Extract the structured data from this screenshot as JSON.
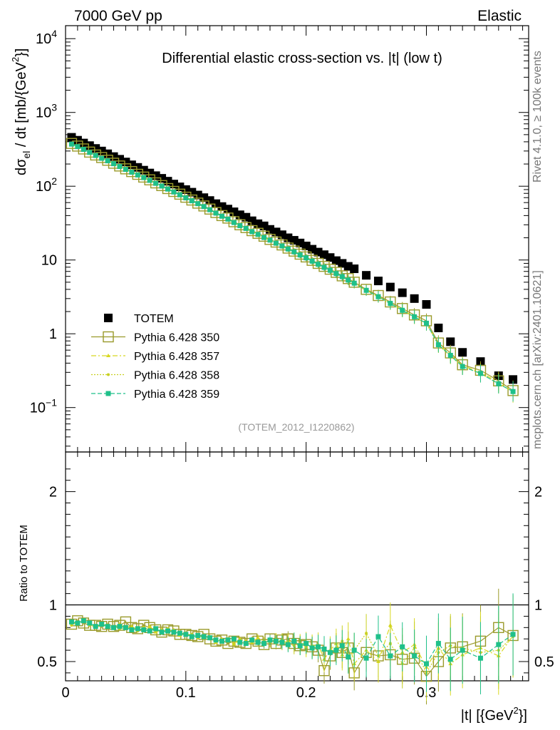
{
  "header": {
    "left": "7000 GeV pp",
    "right": "Elastic"
  },
  "side_labels": {
    "version": "Rivet 4.1.0, ≥ 100k events",
    "source": "mcplots.cern.ch [arXiv:2401.10621]"
  },
  "colors": {
    "totem": "#000000",
    "p350": "#9a9a2a",
    "p357": "#d8d820",
    "p358": "#c8d020",
    "p359": "#1fc08a"
  },
  "chart_data": [
    {
      "type": "scatter",
      "title": "Differential elastic cross-section vs. |t| (low t)",
      "watermark": "(TOTEM_2012_I1220862)",
      "ylabel_main": "dσ",
      "ylabel_sub": "el",
      "ylabel_tail": " / dt [mb/{GeV",
      "ylabel_sup": "2",
      "ylabel_end": "}]",
      "yscale": "log",
      "ylim": [
        0.025,
        15000
      ],
      "xlim": [
        0,
        0.385
      ],
      "ytick_labels": [
        {
          "value": 10000,
          "base": "10",
          "exp": "4"
        },
        {
          "value": 1000,
          "base": "10",
          "exp": "3"
        },
        {
          "value": 100,
          "base": "10",
          "exp": "2"
        },
        {
          "value": 10,
          "base": "10",
          "exp": ""
        },
        {
          "value": 1,
          "base": "1",
          "exp": ""
        },
        {
          "value": 0.1,
          "base": "10",
          "exp": "−1"
        }
      ],
      "legend": [
        "TOTEM",
        "Pythia 6.428 350",
        "Pythia 6.428 357",
        "Pythia 6.428 358",
        "Pythia 6.428 359"
      ],
      "legend_position": "lower-left",
      "x": [
        0.005,
        0.01,
        0.015,
        0.02,
        0.025,
        0.03,
        0.035,
        0.04,
        0.045,
        0.05,
        0.055,
        0.06,
        0.065,
        0.07,
        0.075,
        0.08,
        0.085,
        0.09,
        0.095,
        0.1,
        0.105,
        0.11,
        0.115,
        0.12,
        0.125,
        0.13,
        0.135,
        0.14,
        0.145,
        0.15,
        0.155,
        0.16,
        0.165,
        0.17,
        0.175,
        0.18,
        0.185,
        0.19,
        0.195,
        0.2,
        0.205,
        0.21,
        0.215,
        0.22,
        0.225,
        0.23,
        0.235,
        0.24,
        0.25,
        0.26,
        0.27,
        0.28,
        0.29,
        0.3,
        0.31,
        0.32,
        0.33,
        0.345,
        0.36,
        0.372
      ],
      "series": [
        {
          "name": "TOTEM",
          "values": [
            460,
            420,
            385,
            355,
            325,
            300,
            275,
            252,
            232,
            213,
            195,
            180,
            165,
            151,
            139,
            128,
            117,
            107,
            98,
            90,
            83,
            76,
            70,
            64,
            58,
            53,
            49,
            45,
            41,
            38,
            34,
            31,
            29,
            26,
            24,
            22,
            20,
            18.5,
            17,
            15.5,
            14,
            12.8,
            11.8,
            10.8,
            9.8,
            9.0,
            8.2,
            7.6,
            6.2,
            5.2,
            4.3,
            3.6,
            3.0,
            2.5,
            1.2,
            0.78,
            0.56,
            0.42,
            0.27,
            0.24
          ]
        },
        {
          "name": "Pythia 6.428 350",
          "values": [
            380,
            350,
            320,
            290,
            265,
            245,
            225,
            205,
            188,
            172,
            158,
            145,
            133,
            122,
            111,
            102,
            93,
            85,
            78,
            71,
            65,
            59,
            54,
            49,
            44,
            40,
            37,
            33,
            30,
            27.5,
            25,
            23,
            21,
            19,
            17.5,
            16,
            14.5,
            13.2,
            12,
            11,
            9.9,
            9.0,
            8.2,
            7.5,
            6.8,
            6.1,
            5.6,
            5.0,
            4.0,
            3.3,
            2.7,
            2.2,
            1.8,
            1.5,
            0.75,
            0.55,
            0.38,
            0.32,
            0.23,
            0.17
          ]
        },
        {
          "name": "Pythia 6.428 357",
          "values": [
            375,
            345,
            318,
            288,
            262,
            240,
            222,
            203,
            186,
            170,
            156,
            143,
            131,
            120,
            110,
            101,
            92,
            84,
            77,
            70,
            64,
            58,
            53,
            48,
            43.5,
            39.5,
            36,
            32.5,
            29.5,
            27,
            24.5,
            22.5,
            20.5,
            18.8,
            17,
            15.6,
            14.2,
            13,
            11.8,
            10.8,
            9.7,
            8.8,
            8.0,
            7.3,
            6.6,
            6.0,
            5.4,
            4.9,
            3.9,
            3.2,
            2.6,
            2.1,
            1.7,
            1.4,
            0.72,
            0.52,
            0.37,
            0.3,
            0.22,
            0.16
          ]
        },
        {
          "name": "Pythia 6.428 358",
          "values": [
            370,
            342,
            315,
            286,
            260,
            238,
            220,
            201,
            184,
            168,
            154,
            142,
            130,
            119,
            109,
            100,
            91,
            83,
            76,
            69,
            63,
            57.5,
            52.5,
            47.5,
            43,
            39,
            35.5,
            32,
            29,
            26.5,
            24,
            22,
            20,
            18.5,
            16.8,
            15.4,
            14,
            12.8,
            11.7,
            10.7,
            9.6,
            8.7,
            7.9,
            7.2,
            6.5,
            5.9,
            5.3,
            4.8,
            3.85,
            3.15,
            2.55,
            2.05,
            1.68,
            1.38,
            0.7,
            0.5,
            0.36,
            0.29,
            0.21,
            0.165
          ]
        },
        {
          "name": "Pythia 6.428 359",
          "values": [
            372,
            344,
            316,
            287,
            261,
            239,
            221,
            202,
            185,
            169,
            155,
            142,
            131,
            120,
            109.5,
            100.5,
            91.5,
            83.5,
            76.5,
            69.5,
            63.5,
            58,
            53,
            48,
            43.2,
            39.2,
            35.8,
            32.2,
            29.2,
            26.8,
            24.2,
            22.2,
            20.2,
            18.6,
            16.9,
            15.5,
            14.1,
            12.9,
            11.7,
            10.7,
            9.65,
            8.75,
            7.95,
            7.25,
            6.55,
            5.95,
            5.35,
            4.85,
            3.88,
            3.18,
            2.58,
            2.08,
            1.7,
            1.39,
            0.71,
            0.51,
            0.36,
            0.29,
            0.21,
            0.165
          ]
        }
      ]
    },
    {
      "type": "scatter",
      "ylabel": "Ratio to TOTEM",
      "xlabel_main": "|t|  [{GeV",
      "xlabel_sup": "2",
      "xlabel_end": "}]",
      "ylim": [
        0.33,
        2.35
      ],
      "xlim": [
        0,
        0.385
      ],
      "reference_line": 1,
      "ytick_labels": [
        {
          "value": 2,
          "text": "2"
        },
        {
          "value": 1,
          "text": "1"
        },
        {
          "value": 0.5,
          "text": "0.5"
        }
      ],
      "xtick_labels": [
        {
          "value": 0,
          "text": "0"
        },
        {
          "value": 0.1,
          "text": "0.1"
        },
        {
          "value": 0.2,
          "text": "0.2"
        },
        {
          "value": 0.3,
          "text": "0.3"
        }
      ],
      "x": [
        0.005,
        0.01,
        0.015,
        0.02,
        0.025,
        0.03,
        0.035,
        0.04,
        0.045,
        0.05,
        0.055,
        0.06,
        0.065,
        0.07,
        0.075,
        0.08,
        0.085,
        0.09,
        0.095,
        0.1,
        0.105,
        0.11,
        0.115,
        0.12,
        0.125,
        0.13,
        0.135,
        0.14,
        0.145,
        0.15,
        0.155,
        0.16,
        0.165,
        0.17,
        0.175,
        0.18,
        0.185,
        0.19,
        0.195,
        0.2,
        0.205,
        0.21,
        0.215,
        0.22,
        0.225,
        0.23,
        0.235,
        0.24,
        0.25,
        0.26,
        0.27,
        0.28,
        0.29,
        0.3,
        0.31,
        0.32,
        0.33,
        0.345,
        0.36,
        0.372
      ],
      "series": [
        {
          "name": "Pythia 6.428 350",
          "values": [
            0.83,
            0.86,
            0.84,
            0.82,
            0.82,
            0.81,
            0.83,
            0.81,
            0.82,
            0.85,
            0.8,
            0.79,
            0.82,
            0.8,
            0.78,
            0.76,
            0.78,
            0.77,
            0.74,
            0.74,
            0.73,
            0.72,
            0.74,
            0.7,
            0.68,
            0.69,
            0.66,
            0.68,
            0.67,
            0.66,
            0.7,
            0.68,
            0.65,
            0.7,
            0.66,
            0.69,
            0.7,
            0.66,
            0.64,
            0.65,
            0.63,
            0.6,
            0.42,
            0.55,
            0.62,
            0.58,
            0.62,
            0.4,
            0.58,
            0.55,
            0.56,
            0.52,
            0.53,
            0.37,
            0.5,
            0.62,
            0.63,
            0.68,
            0.8,
            0.73
          ]
        },
        {
          "name": "Pythia 6.428 357",
          "values": [
            0.84,
            0.85,
            0.86,
            0.83,
            0.81,
            0.83,
            0.82,
            0.8,
            0.83,
            0.8,
            0.81,
            0.78,
            0.79,
            0.81,
            0.76,
            0.78,
            0.76,
            0.78,
            0.73,
            0.75,
            0.72,
            0.73,
            0.71,
            0.72,
            0.67,
            0.7,
            0.68,
            0.66,
            0.7,
            0.68,
            0.67,
            0.71,
            0.67,
            0.68,
            0.7,
            0.66,
            0.68,
            0.68,
            0.66,
            0.63,
            0.64,
            0.65,
            0.52,
            0.6,
            0.66,
            0.56,
            0.7,
            0.48,
            0.6,
            0.5,
            0.82,
            0.58,
            0.65,
            0.45,
            0.62,
            0.48,
            0.56,
            0.62,
            0.55,
            0.73
          ]
        },
        {
          "name": "Pythia 6.428 358",
          "values": [
            0.82,
            0.85,
            0.85,
            0.82,
            0.8,
            0.82,
            0.8,
            0.81,
            0.79,
            0.79,
            0.8,
            0.77,
            0.8,
            0.78,
            0.77,
            0.76,
            0.79,
            0.75,
            0.76,
            0.74,
            0.74,
            0.71,
            0.73,
            0.7,
            0.69,
            0.68,
            0.7,
            0.65,
            0.69,
            0.66,
            0.68,
            0.66,
            0.68,
            0.67,
            0.67,
            0.69,
            0.66,
            0.64,
            0.65,
            0.67,
            0.62,
            0.63,
            0.6,
            0.58,
            0.62,
            0.68,
            0.55,
            0.6,
            0.75,
            0.55,
            0.66,
            0.48,
            0.62,
            0.4,
            0.58,
            0.64,
            0.62,
            0.58,
            0.6,
            0.72
          ]
        },
        {
          "name": "Pythia 6.428 359",
          "values": [
            0.85,
            0.84,
            0.86,
            0.84,
            0.81,
            0.83,
            0.81,
            0.8,
            0.81,
            0.8,
            0.78,
            0.79,
            0.78,
            0.77,
            0.79,
            0.76,
            0.77,
            0.76,
            0.75,
            0.74,
            0.72,
            0.73,
            0.72,
            0.71,
            0.69,
            0.68,
            0.69,
            0.7,
            0.67,
            0.66,
            0.69,
            0.67,
            0.66,
            0.69,
            0.68,
            0.67,
            0.65,
            0.68,
            0.64,
            0.66,
            0.62,
            0.63,
            0.61,
            0.58,
            0.6,
            0.64,
            0.54,
            0.6,
            0.53,
            0.72,
            0.55,
            0.63,
            0.55,
            0.48,
            0.66,
            0.52,
            0.6,
            0.53,
            0.65,
            0.74
          ]
        }
      ]
    }
  ]
}
